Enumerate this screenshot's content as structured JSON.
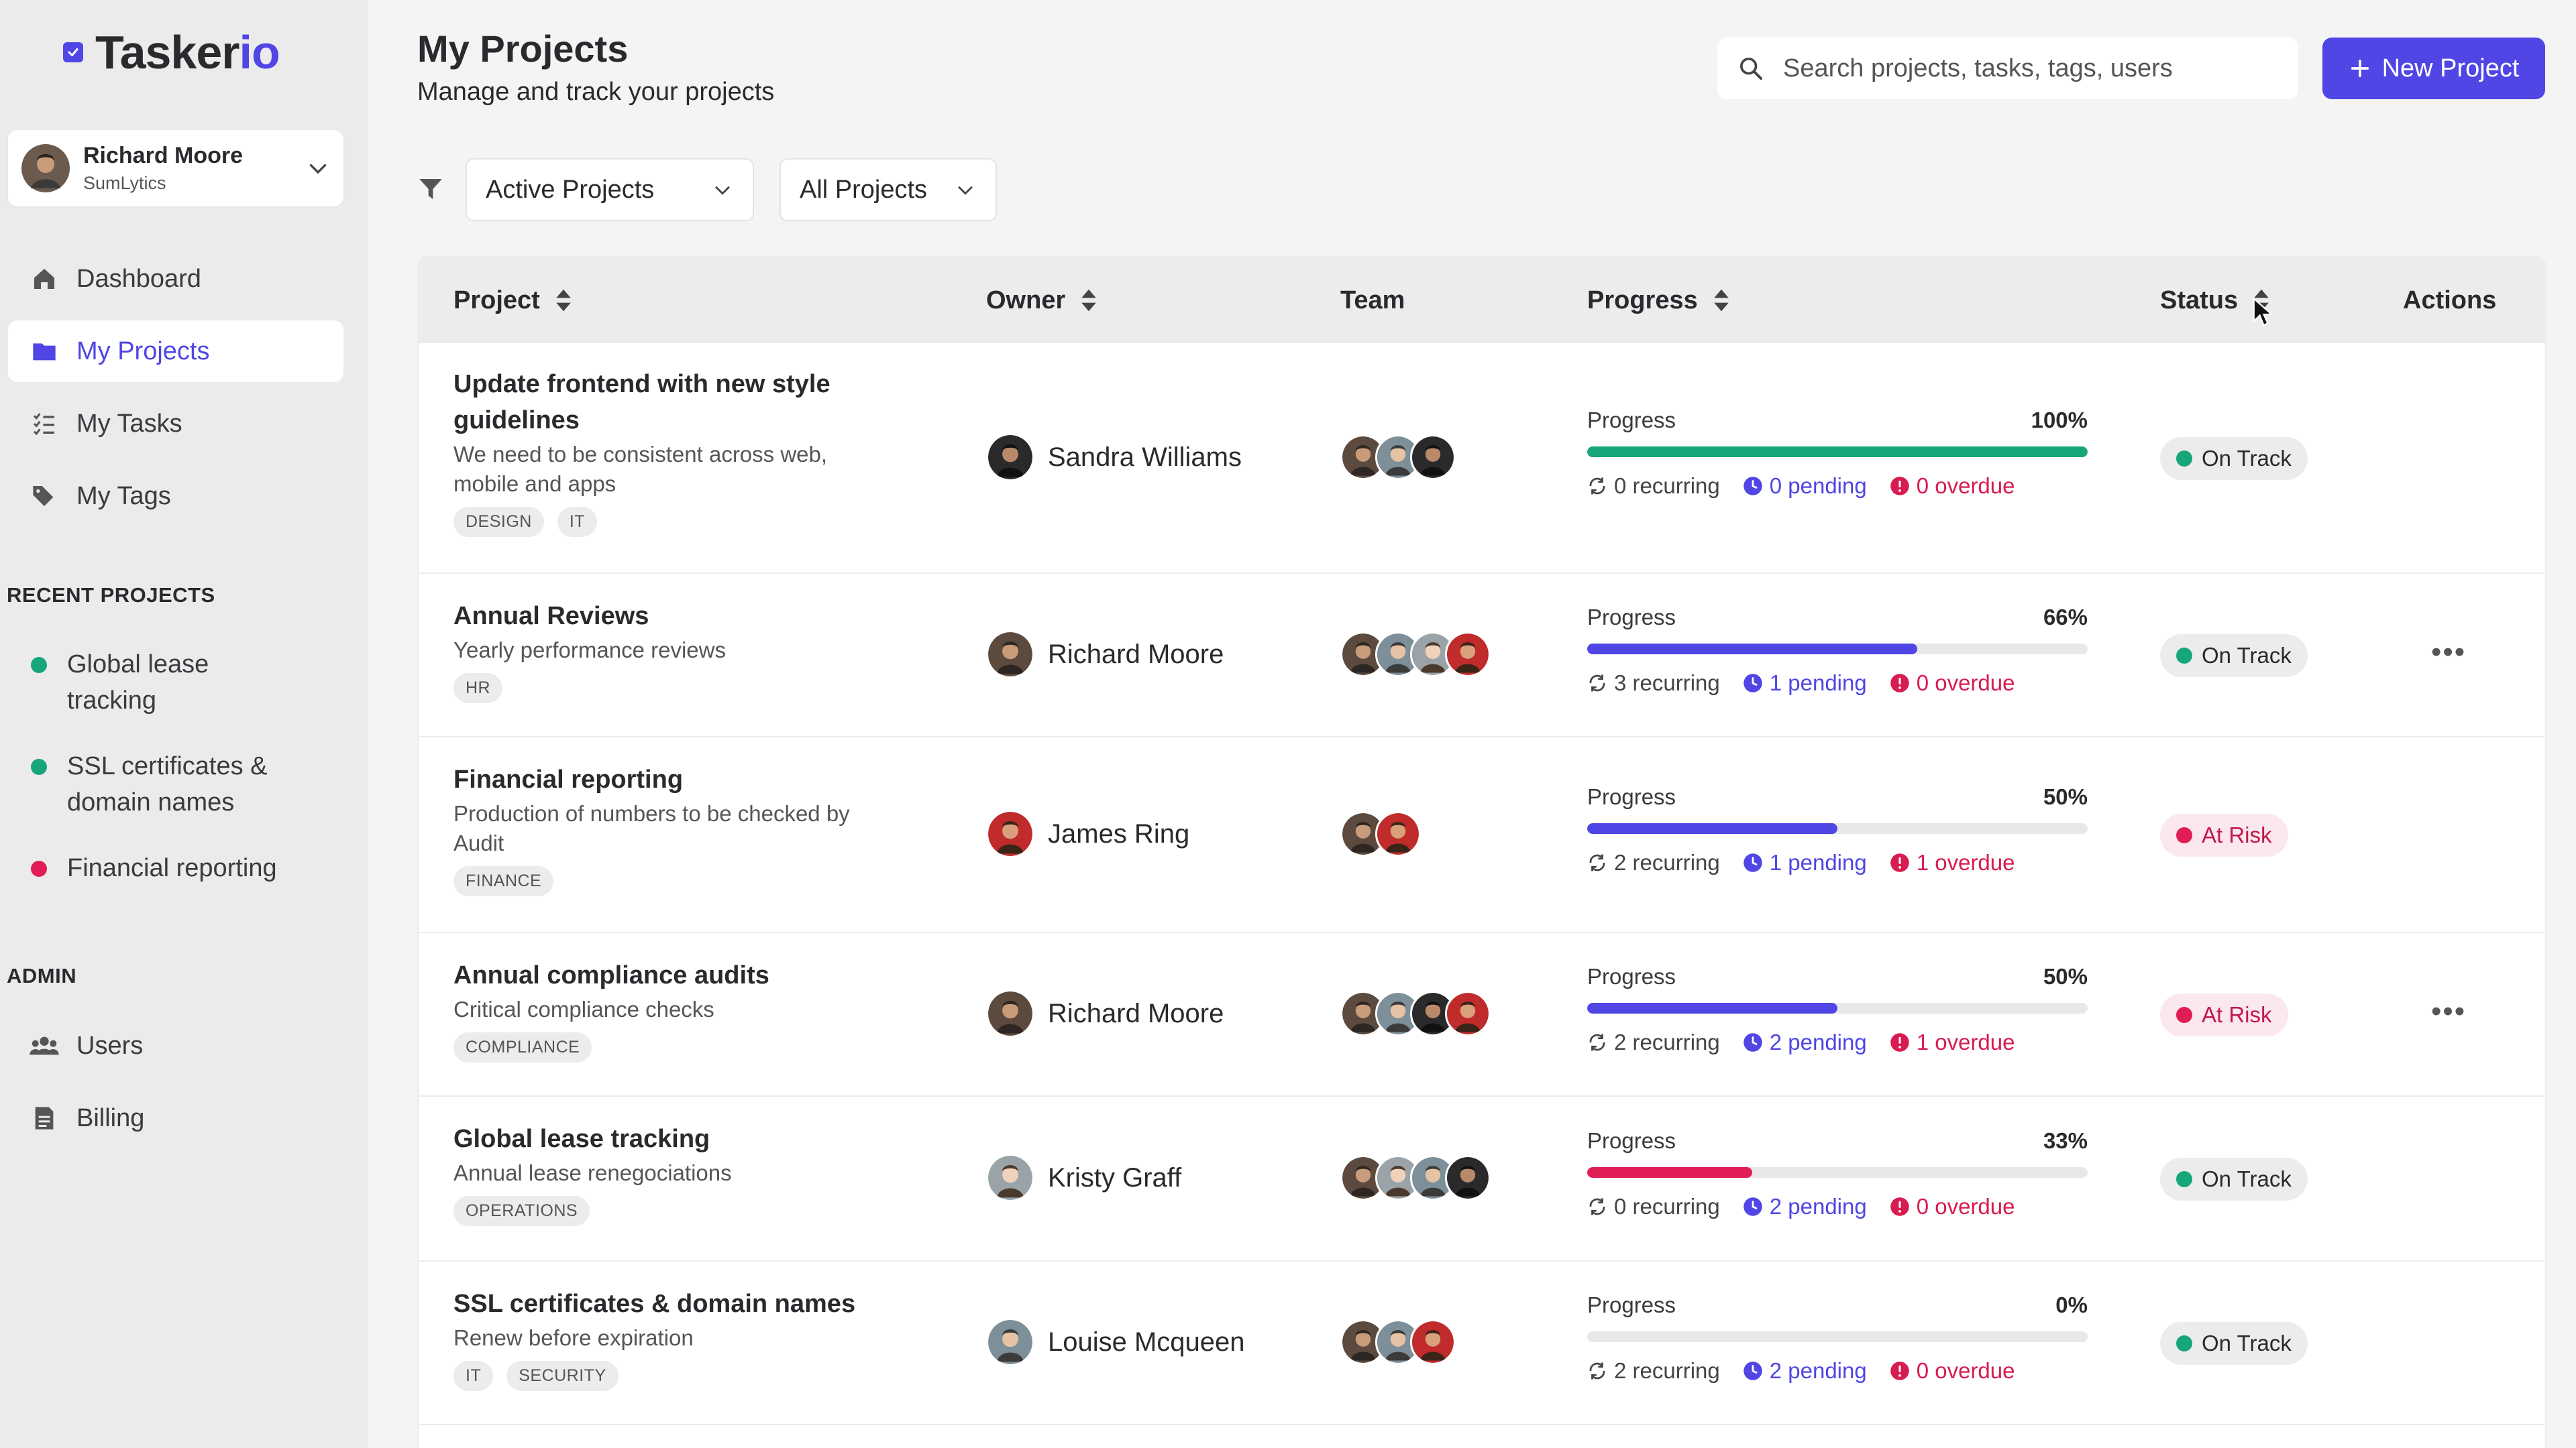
{
  "app": {
    "name_main": "Tasker",
    "name_accent": "io"
  },
  "user": {
    "name": "Richard Moore",
    "org": "SumLytics"
  },
  "nav": [
    {
      "label": "Dashboard",
      "icon": "home-icon"
    },
    {
      "label": "My Projects",
      "icon": "folder-icon",
      "active": true
    },
    {
      "label": "My Tasks",
      "icon": "tasks-list-icon"
    },
    {
      "label": "My Tags",
      "icon": "tags-icon"
    }
  ],
  "recent": {
    "title": "RECENT PROJECTS",
    "items": [
      {
        "label": "Global lease tracking",
        "color": "#16a67a"
      },
      {
        "label": "SSL certificates & domain names",
        "color": "#16a67a"
      },
      {
        "label": "Financial reporting",
        "color": "#e11d55"
      }
    ]
  },
  "admin": {
    "title": "ADMIN",
    "items": [
      {
        "label": "Users",
        "icon": "users-icon"
      },
      {
        "label": "Billing",
        "icon": "billing-icon"
      }
    ]
  },
  "header": {
    "title": "My Projects",
    "subtitle": "Manage and track your projects",
    "search_placeholder": "Search projects, tasks, tags, users",
    "new_button": "New Project"
  },
  "filters": {
    "status": "Active Projects",
    "scope": "All Projects"
  },
  "table": {
    "columns": {
      "project": "Project",
      "owner": "Owner",
      "team": "Team",
      "progress": "Progress",
      "status": "Status",
      "actions": "Actions"
    },
    "rows": [
      {
        "title": "Update frontend with new style guidelines",
        "desc": "We need to be consistent across web, mobile and apps",
        "tags": [
          "DESIGN",
          "IT"
        ],
        "owner": "Sandra Williams",
        "progress_label": "Progress",
        "percent": "100%",
        "value": 1.0,
        "bar_color": "#16a67a",
        "recurring": "0 recurring",
        "pending": "0 pending",
        "overdue": "0 overdue",
        "status": "On Track",
        "risk": false,
        "actions": ""
      },
      {
        "title": "Annual Reviews",
        "desc": "Yearly performance reviews",
        "tags": [
          "HR"
        ],
        "owner": "Richard Moore",
        "progress_label": "Progress",
        "percent": "66%",
        "value": 0.66,
        "bar_color": "#4f46e5",
        "recurring": "3 recurring",
        "pending": "1 pending",
        "overdue": "0 overdue",
        "status": "On Track",
        "risk": false,
        "actions": "•••"
      },
      {
        "title": "Financial reporting",
        "desc": "Production of numbers to be checked by Audit",
        "tags": [
          "FINANCE"
        ],
        "owner": "James Ring",
        "progress_label": "Progress",
        "percent": "50%",
        "value": 0.5,
        "bar_color": "#4f46e5",
        "recurring": "2 recurring",
        "pending": "1 pending",
        "overdue": "1 overdue",
        "status": "At Risk",
        "risk": true,
        "actions": ""
      },
      {
        "title": "Annual compliance audits",
        "desc": "Critical compliance checks",
        "tags": [
          "COMPLIANCE"
        ],
        "owner": "Richard Moore",
        "progress_label": "Progress",
        "percent": "50%",
        "value": 0.5,
        "bar_color": "#4f46e5",
        "recurring": "2 recurring",
        "pending": "2 pending",
        "overdue": "1 overdue",
        "status": "At Risk",
        "risk": true,
        "actions": "•••"
      },
      {
        "title": "Global lease tracking",
        "desc": "Annual lease renegociations",
        "tags": [
          "OPERATIONS"
        ],
        "owner": "Kristy Graff",
        "progress_label": "Progress",
        "percent": "33%",
        "value": 0.33,
        "bar_color": "#e11d55",
        "recurring": "0 recurring",
        "pending": "2 pending",
        "overdue": "0 overdue",
        "status": "On Track",
        "risk": false,
        "actions": ""
      },
      {
        "title": "SSL certificates & domain names",
        "desc": "Renew before expiration",
        "tags": [
          "IT",
          "SECURITY"
        ],
        "owner": "Louise Mcqueen",
        "progress_label": "Progress",
        "percent": "0%",
        "value": 0,
        "bar_color": "#4f46e5",
        "recurring": "2 recurring",
        "pending": "2 pending",
        "overdue": "0 overdue",
        "status": "On Track",
        "risk": false,
        "actions": ""
      }
    ]
  },
  "colors": {
    "accent": "#4f46e5",
    "on_track": "#16a67a",
    "at_risk": "#e11d55"
  }
}
